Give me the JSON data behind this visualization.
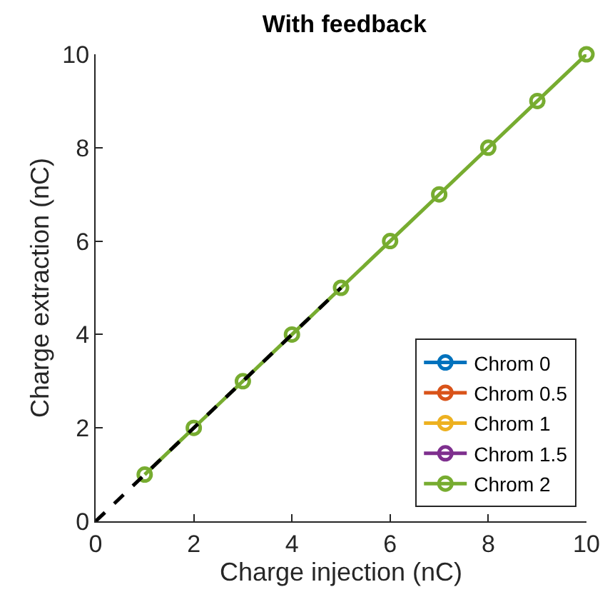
{
  "chart_data": {
    "type": "line",
    "title": "With feedback",
    "xlabel": "Charge injection (nC)",
    "ylabel": "Charge extraction (nC)",
    "x": [
      1,
      2,
      3,
      4,
      5,
      6,
      7,
      8,
      9,
      10
    ],
    "series": [
      {
        "name": "Chrom 0",
        "color": "#0072bd",
        "values": [
          null,
          null,
          null,
          null,
          null,
          null,
          null,
          null,
          null,
          null
        ]
      },
      {
        "name": "Chrom 0.5",
        "color": "#d95319",
        "values": [
          null,
          null,
          null,
          null,
          null,
          null,
          null,
          null,
          null,
          null
        ]
      },
      {
        "name": "Chrom 1",
        "color": "#edb120",
        "values": [
          null,
          null,
          null,
          null,
          null,
          null,
          null,
          null,
          null,
          null
        ]
      },
      {
        "name": "Chrom 1.5",
        "color": "#7e2f8e",
        "values": [
          null,
          null,
          null,
          null,
          null,
          null,
          null,
          null,
          null,
          null
        ]
      },
      {
        "name": "Chrom 2",
        "color": "#77ac30",
        "values": [
          1,
          2,
          3,
          4,
          5,
          6,
          7,
          8,
          9,
          10
        ]
      },
      {
        "type": "line",
        "x": [
          0,
          5
        ],
        "values": [
          0,
          5
        ],
        "color": "#000000",
        "marker": "none",
        "line_style": "dashed"
      }
    ],
    "marker": "circle",
    "line_style": "solid",
    "xlim": [
      0,
      10
    ],
    "ylim": [
      0,
      10
    ],
    "xticks": [
      0,
      2,
      4,
      6,
      8,
      10
    ],
    "yticks": [
      0,
      2,
      4,
      6,
      8,
      10
    ],
    "legend": "bottom right"
  }
}
